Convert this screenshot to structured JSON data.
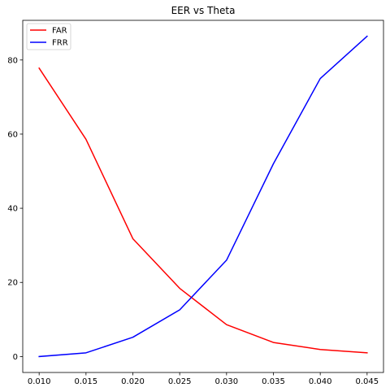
{
  "chart_data": {
    "type": "line",
    "title": "EER vs Theta",
    "xlabel": "",
    "ylabel": "",
    "x": [
      0.01,
      0.015,
      0.02,
      0.025,
      0.03,
      0.035,
      0.04,
      0.045
    ],
    "x_tick_labels": [
      "0.010",
      "0.015",
      "0.020",
      "0.025",
      "0.030",
      "0.035",
      "0.040",
      "0.045"
    ],
    "xlim": [
      0.00825,
      0.04675
    ],
    "y_ticks": [
      0,
      20,
      40,
      60,
      80
    ],
    "y_tick_labels": [
      "0",
      "20",
      "40",
      "60",
      "80"
    ],
    "ylim": [
      -4.3,
      90.7
    ],
    "grid": false,
    "legend_position": "top-left",
    "series": [
      {
        "name": "FAR",
        "color": "#ff0000",
        "values": [
          77.8,
          58.6,
          31.8,
          18.4,
          8.6,
          3.8,
          1.9,
          1.0
        ]
      },
      {
        "name": "FRR",
        "color": "#0000ff",
        "values": [
          0.0,
          1.0,
          5.2,
          12.6,
          26.0,
          52.0,
          75.0,
          86.4
        ]
      }
    ]
  }
}
